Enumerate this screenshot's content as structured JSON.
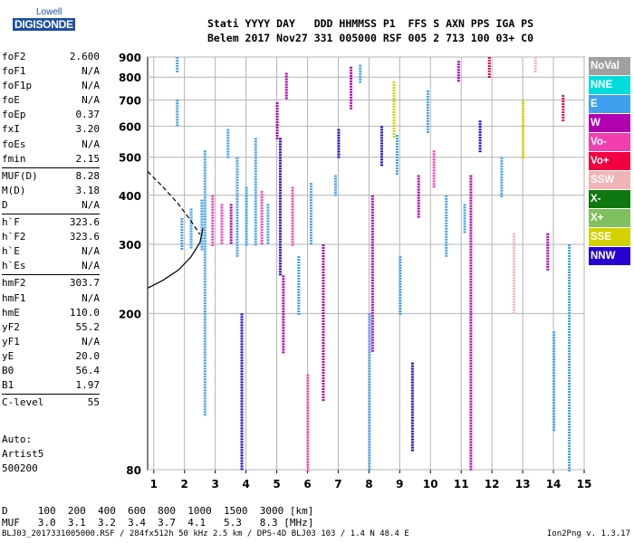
{
  "logo": {
    "brand": "Lowell",
    "product": "DIGISONDE"
  },
  "header": {
    "line1": "Stati YYYY DAY   DDD HHMMSS P1  FFS S AXN PPS IGA PS",
    "line2": "Belem 2017 Nov27 331 005000 RSF 005 2 713 100 03+ C0"
  },
  "params": [
    [
      [
        "foF2",
        "2.600"
      ],
      [
        "foF1",
        "N/A"
      ],
      [
        "foF1p",
        "N/A"
      ],
      [
        "foE",
        "N/A"
      ],
      [
        "foEp",
        "0.37"
      ],
      [
        "fxI",
        "3.20"
      ],
      [
        "foEs",
        "N/A"
      ],
      [
        "fmin",
        "2.15"
      ]
    ],
    [
      [
        "MUF(D)",
        "8.28"
      ],
      [
        "M(D)",
        "3.18"
      ],
      [
        "D",
        "N/A"
      ]
    ],
    [
      [
        "h`F",
        "323.6"
      ],
      [
        "h`F2",
        "323.6"
      ],
      [
        "h`E",
        "N/A"
      ],
      [
        "h`Es",
        "N/A"
      ]
    ],
    [
      [
        "hmF2",
        "303.7"
      ],
      [
        "hmF1",
        "N/A"
      ],
      [
        "hmE",
        "110.0"
      ],
      [
        "yF2",
        "55.2"
      ],
      [
        "yF1",
        "N/A"
      ],
      [
        "yE",
        "20.0"
      ],
      [
        "B0",
        "56.4"
      ],
      [
        "B1",
        "1.97"
      ]
    ],
    [
      [
        "C-level",
        "55"
      ]
    ]
  ],
  "auto": {
    "l1": "Auto:",
    "l2": "Artist5",
    "l3": "500200"
  },
  "legend": [
    {
      "label": "NoVal",
      "color": "#a0a0a0"
    },
    {
      "label": "NNE",
      "color": "#00dcdc"
    },
    {
      "label": "E",
      "color": "#40a0f0"
    },
    {
      "label": "W",
      "color": "#b000b0"
    },
    {
      "label": "Vo-",
      "color": "#f040b0"
    },
    {
      "label": "Vo+",
      "color": "#f00040"
    },
    {
      "label": "SSW",
      "color": "#f0b4b4"
    },
    {
      "label": "X-",
      "color": "#107810"
    },
    {
      "label": "X+",
      "color": "#80c060"
    },
    {
      "label": "SSE",
      "color": "#d2d200"
    },
    {
      "label": "NNW",
      "color": "#2800d2"
    }
  ],
  "bottom": {
    "line1": "D     100  200  400  600  800  1000  1500  3000 [km]",
    "line2": "MUF   3.0  3.1  3.2  3.4  3.7  4.1   5.3   8.3 [MHz]"
  },
  "footer": {
    "left": "BLJ03_2017331005000.RSF / 284fx512h 50 kHz 2.5 km / DPS-4D BLJ03 103 / 1.4 N 48.4 E",
    "right": "Ion2Png v. 1.3.17"
  },
  "chart_data": {
    "type": "scatter",
    "title": "",
    "xlabel": "",
    "ylabel": "",
    "x_unit": "MHz",
    "y_unit": "km",
    "xlim": [
      0.8,
      15
    ],
    "ylim": [
      80,
      900
    ],
    "y_scale": "log",
    "grid": true,
    "legend_position": "right",
    "xticks": [
      1,
      2,
      3,
      4,
      5,
      6,
      7,
      8,
      9,
      10,
      11,
      12,
      13,
      14,
      15
    ],
    "yticks": [
      80,
      200,
      300,
      400,
      500,
      600,
      700,
      800,
      900
    ],
    "trace_fit": {
      "x": [
        0.8,
        1.3,
        1.8,
        2.2,
        2.5,
        2.6
      ],
      "y": [
        232,
        243,
        258,
        278,
        303,
        330
      ]
    },
    "trace_dashed": {
      "x": [
        0.8,
        1.3,
        1.8,
        2.2,
        2.5
      ],
      "y": [
        460,
        420,
        380,
        345,
        318
      ]
    },
    "columns": [
      {
        "x": 1.75,
        "y": [
          820,
          900
        ],
        "color": "#40a0f0"
      },
      {
        "x": 1.75,
        "y": [
          600,
          700
        ],
        "color": "#40a0f0"
      },
      {
        "x": 1.9,
        "y": [
          290,
          350
        ],
        "color": "#40a0f0"
      },
      {
        "x": 2.2,
        "y": [
          295,
          370
        ],
        "color": "#40a0f0"
      },
      {
        "x": 2.55,
        "y": [
          290,
          390
        ],
        "color": "#40a0f0"
      },
      {
        "x": 2.65,
        "y": [
          110,
          520
        ],
        "color": "#40a0f0"
      },
      {
        "x": 2.9,
        "y": [
          300,
          400
        ],
        "color": "#f040b0"
      },
      {
        "x": 3.2,
        "y": [
          300,
          380
        ],
        "color": "#f040b0"
      },
      {
        "x": 3.4,
        "y": [
          500,
          590
        ],
        "color": "#40a0f0"
      },
      {
        "x": 3.5,
        "y": [
          300,
          380
        ],
        "color": "#b000b0"
      },
      {
        "x": 3.7,
        "y": [
          280,
          500
        ],
        "color": "#40a0f0"
      },
      {
        "x": 3.85,
        "y": [
          80,
          200
        ],
        "color": "#2800d2"
      },
      {
        "x": 4.0,
        "y": [
          300,
          420
        ],
        "color": "#40a0f0"
      },
      {
        "x": 4.3,
        "y": [
          300,
          560
        ],
        "color": "#40a0f0"
      },
      {
        "x": 4.5,
        "y": [
          300,
          410
        ],
        "color": "#f040b0"
      },
      {
        "x": 4.7,
        "y": [
          300,
          380
        ],
        "color": "#40a0f0"
      },
      {
        "x": 5.0,
        "y": [
          560,
          690
        ],
        "color": "#b000b0"
      },
      {
        "x": 5.1,
        "y": [
          250,
          560
        ],
        "color": "#2800d2"
      },
      {
        "x": 5.2,
        "y": [
          160,
          250
        ],
        "color": "#b000b0"
      },
      {
        "x": 5.3,
        "y": [
          700,
          820
        ],
        "color": "#b000b0"
      },
      {
        "x": 5.5,
        "y": [
          300,
          420
        ],
        "color": "#f040b0"
      },
      {
        "x": 5.7,
        "y": [
          200,
          280
        ],
        "color": "#40a0f0"
      },
      {
        "x": 6.0,
        "y": [
          80,
          140
        ],
        "color": "#f040b0"
      },
      {
        "x": 6.1,
        "y": [
          300,
          430
        ],
        "color": "#40a0f0"
      },
      {
        "x": 6.5,
        "y": [
          120,
          300
        ],
        "color": "#b000b0"
      },
      {
        "x": 6.9,
        "y": [
          400,
          450
        ],
        "color": "#40a0f0"
      },
      {
        "x": 7.0,
        "y": [
          500,
          590
        ],
        "color": "#2800d2"
      },
      {
        "x": 7.4,
        "y": [
          660,
          850
        ],
        "color": "#b000b0"
      },
      {
        "x": 7.7,
        "y": [
          770,
          860
        ],
        "color": "#40a0f0"
      },
      {
        "x": 8.0,
        "y": [
          80,
          200
        ],
        "color": "#40a0f0"
      },
      {
        "x": 8.1,
        "y": [
          160,
          400
        ],
        "color": "#b000b0"
      },
      {
        "x": 8.4,
        "y": [
          480,
          600
        ],
        "color": "#2800d2"
      },
      {
        "x": 8.8,
        "y": [
          560,
          780
        ],
        "color": "#d2d200"
      },
      {
        "x": 8.9,
        "y": [
          450,
          570
        ],
        "color": "#40a0f0"
      },
      {
        "x": 9.0,
        "y": [
          200,
          280
        ],
        "color": "#40a0f0"
      },
      {
        "x": 9.4,
        "y": [
          90,
          150
        ],
        "color": "#2800d2"
      },
      {
        "x": 9.6,
        "y": [
          350,
          450
        ],
        "color": "#b000b0"
      },
      {
        "x": 9.9,
        "y": [
          580,
          740
        ],
        "color": "#40a0f0"
      },
      {
        "x": 10.1,
        "y": [
          420,
          520
        ],
        "color": "#f040b0"
      },
      {
        "x": 10.5,
        "y": [
          280,
          400
        ],
        "color": "#40a0f0"
      },
      {
        "x": 10.9,
        "y": [
          780,
          880
        ],
        "color": "#b000b0"
      },
      {
        "x": 11.1,
        "y": [
          320,
          380
        ],
        "color": "#40a0f0"
      },
      {
        "x": 11.3,
        "y": [
          80,
          450
        ],
        "color": "#b000b0"
      },
      {
        "x": 11.6,
        "y": [
          520,
          620
        ],
        "color": "#2800d2"
      },
      {
        "x": 11.9,
        "y": [
          800,
          900
        ],
        "color": "#f00040"
      },
      {
        "x": 12.3,
        "y": [
          400,
          500
        ],
        "color": "#40a0f0"
      },
      {
        "x": 12.7,
        "y": [
          200,
          320
        ],
        "color": "#f0b4b4"
      },
      {
        "x": 13.0,
        "y": [
          500,
          700
        ],
        "color": "#d2d200"
      },
      {
        "x": 13.4,
        "y": [
          820,
          900
        ],
        "color": "#f0b4b4"
      },
      {
        "x": 13.8,
        "y": [
          260,
          320
        ],
        "color": "#b000b0"
      },
      {
        "x": 14.0,
        "y": [
          100,
          180
        ],
        "color": "#40a0f0"
      },
      {
        "x": 14.3,
        "y": [
          620,
          720
        ],
        "color": "#f00040"
      },
      {
        "x": 14.5,
        "y": [
          80,
          300
        ],
        "color": "#40a0f0"
      }
    ]
  }
}
